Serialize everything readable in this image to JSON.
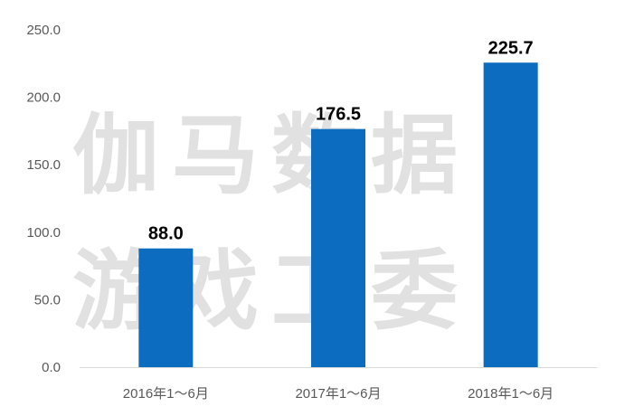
{
  "watermark": {
    "line1": "伽马数据",
    "line2": "游戏工委"
  },
  "chart_data": {
    "type": "bar",
    "categories": [
      "2016年1～6月",
      "2017年1～6月",
      "2018年1～6月"
    ],
    "values": [
      88.0,
      176.5,
      225.7
    ],
    "value_labels": [
      "88.0",
      "176.5",
      "225.7"
    ],
    "title": "",
    "xlabel": "",
    "ylabel": "",
    "ylim": [
      0,
      250
    ],
    "yticks": [
      "0.0",
      "50.0",
      "100.0",
      "150.0",
      "200.0",
      "250.0"
    ],
    "grid": false,
    "legend": "none",
    "bar_color": "#0b6cc0"
  }
}
